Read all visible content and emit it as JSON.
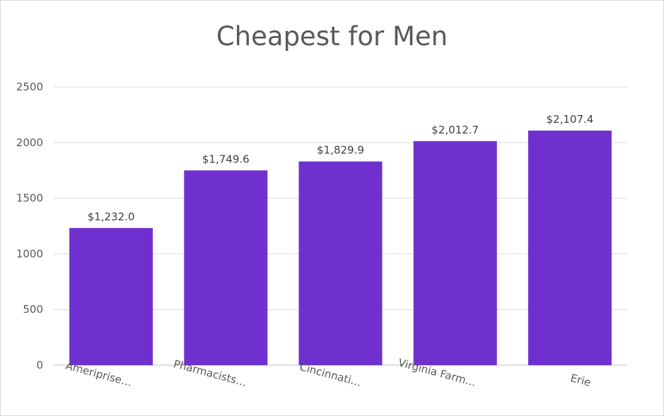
{
  "chart_data": {
    "type": "bar",
    "title": "Cheapest for Men",
    "categories": [
      "Ameriprise…",
      "Pharmacists…",
      "Cincinnati…",
      "Virginia Farm…",
      "Erie"
    ],
    "values": [
      1232.0,
      1749.6,
      1829.9,
      2012.7,
      2107.4
    ],
    "data_labels": [
      "$1,232.0",
      "$1,749.6",
      "$1,829.9",
      "$2,012.7",
      "$2,107.4"
    ],
    "yticks": [
      "0",
      "500",
      "1000",
      "1500",
      "2000",
      "2500"
    ],
    "ylim": [
      0,
      2500
    ],
    "grid": true,
    "bar_color": "#7030d0",
    "xlabel": "",
    "ylabel": ""
  }
}
